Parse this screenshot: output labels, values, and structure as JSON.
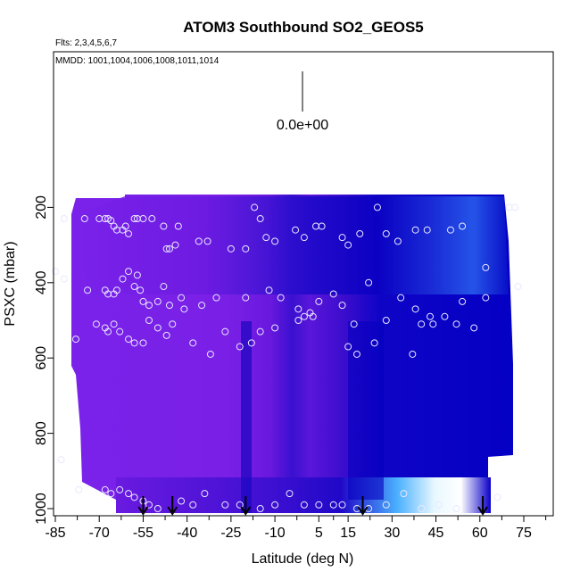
{
  "chart_data": {
    "type": "heatmap",
    "title": "ATOM3 Southbound SO2_GEOS5",
    "subtitle_flights": "Flts: 2,3,4,5,6,7",
    "subtitle_dates": "MMDD: 1001,1004,1006,1008,1011,1014",
    "xlabel": "Latitude (deg N)",
    "ylabel": "PSXC (mbar)",
    "scale_label": "0.0e+00",
    "xlim": [
      -85,
      85
    ],
    "ylim": [
      1000,
      0
    ],
    "x_ticks": [
      "-85",
      "-70",
      "-55",
      "-40",
      "-25",
      "-10",
      "5",
      "15",
      "30",
      "45",
      "60",
      "75"
    ],
    "y_ticks": [
      "200",
      "400",
      "600",
      "800",
      "1000"
    ],
    "colors": {
      "low": "#7a1ee8",
      "mid": "#4a14d6",
      "deep": "#0a00c8",
      "bright": "#2a6cf0",
      "highlight": "#4fb0ff"
    },
    "profile_markers_lat": [
      -55,
      -45,
      -20,
      20,
      61
    ],
    "sample_points": [
      [
        -82,
        230
      ],
      [
        -75,
        230
      ],
      [
        -70,
        230
      ],
      [
        -68,
        230
      ],
      [
        -67,
        230
      ],
      [
        -66,
        235
      ],
      [
        -65,
        250
      ],
      [
        -64,
        260
      ],
      [
        -62,
        260
      ],
      [
        -61,
        250
      ],
      [
        -60,
        270
      ],
      [
        -58,
        230
      ],
      [
        -57,
        230
      ],
      [
        -55,
        230
      ],
      [
        -52,
        230
      ],
      [
        -48,
        250
      ],
      [
        -47,
        310
      ],
      [
        -46,
        310
      ],
      [
        -44,
        300
      ],
      [
        -43,
        250
      ],
      [
        -36,
        290
      ],
      [
        -33,
        290
      ],
      [
        -25,
        310
      ],
      [
        -20,
        310
      ],
      [
        -17,
        200
      ],
      [
        -15,
        230
      ],
      [
        -13,
        280
      ],
      [
        -10,
        290
      ],
      [
        -3,
        260
      ],
      [
        0,
        280
      ],
      [
        4,
        250
      ],
      [
        6,
        250
      ],
      [
        13,
        280
      ],
      [
        15,
        300
      ],
      [
        19,
        270
      ],
      [
        25,
        200
      ],
      [
        28,
        270
      ],
      [
        32,
        290
      ],
      [
        38,
        260
      ],
      [
        42,
        260
      ],
      [
        50,
        260
      ],
      [
        54,
        250
      ],
      [
        62,
        360
      ],
      [
        70,
        200
      ],
      [
        72,
        200
      ],
      [
        -85,
        370
      ],
      [
        -82,
        390
      ],
      [
        -74,
        420
      ],
      [
        -68,
        420
      ],
      [
        -67,
        430
      ],
      [
        -65,
        430
      ],
      [
        -64,
        420
      ],
      [
        -62,
        390
      ],
      [
        -60,
        370
      ],
      [
        -58,
        410
      ],
      [
        -57,
        380
      ],
      [
        -56,
        420
      ],
      [
        -55,
        450
      ],
      [
        -53,
        460
      ],
      [
        -50,
        450
      ],
      [
        -48,
        410
      ],
      [
        -46,
        460
      ],
      [
        -42,
        440
      ],
      [
        -41,
        470
      ],
      [
        -35,
        460
      ],
      [
        -30,
        440
      ],
      [
        -20,
        440
      ],
      [
        -12,
        420
      ],
      [
        -8,
        440
      ],
      [
        -2,
        470
      ],
      [
        0,
        490
      ],
      [
        2,
        480
      ],
      [
        5,
        450
      ],
      [
        10,
        430
      ],
      [
        13,
        460
      ],
      [
        17,
        510
      ],
      [
        22,
        400
      ],
      [
        28,
        500
      ],
      [
        33,
        440
      ],
      [
        38,
        470
      ],
      [
        43,
        490
      ],
      [
        48,
        490
      ],
      [
        54,
        450
      ],
      [
        62,
        440
      ],
      [
        73,
        410
      ],
      [
        -78,
        550
      ],
      [
        -71,
        510
      ],
      [
        -68,
        520
      ],
      [
        -67,
        530
      ],
      [
        -65,
        510
      ],
      [
        -63,
        530
      ],
      [
        -60,
        550
      ],
      [
        -58,
        560
      ],
      [
        -55,
        560
      ],
      [
        -53,
        500
      ],
      [
        -50,
        520
      ],
      [
        -47,
        540
      ],
      [
        -45,
        510
      ],
      [
        -38,
        560
      ],
      [
        -32,
        590
      ],
      [
        -27,
        530
      ],
      [
        -22,
        570
      ],
      [
        -18,
        560
      ],
      [
        -15,
        530
      ],
      [
        -10,
        520
      ],
      [
        -2,
        500
      ],
      [
        3,
        490
      ],
      [
        15,
        570
      ],
      [
        18,
        590
      ],
      [
        24,
        560
      ],
      [
        37,
        590
      ],
      [
        40,
        510
      ],
      [
        44,
        510
      ],
      [
        52,
        510
      ],
      [
        58,
        520
      ],
      [
        -83,
        870
      ],
      [
        -77,
        950
      ],
      [
        -68,
        950
      ],
      [
        -66,
        960
      ],
      [
        -63,
        950
      ],
      [
        -60,
        960
      ],
      [
        -58,
        970
      ],
      [
        -55,
        980
      ],
      [
        -53,
        990
      ],
      [
        -50,
        1000
      ],
      [
        -42,
        980
      ],
      [
        -38,
        990
      ],
      [
        -34,
        960
      ],
      [
        -27,
        990
      ],
      [
        -22,
        990
      ],
      [
        -15,
        1000
      ],
      [
        -10,
        990
      ],
      [
        -5,
        960
      ],
      [
        0,
        990
      ],
      [
        5,
        990
      ],
      [
        10,
        990
      ],
      [
        13,
        990
      ],
      [
        18,
        1000
      ],
      [
        22,
        1000
      ],
      [
        28,
        990
      ],
      [
        34,
        960
      ],
      [
        40,
        1000
      ],
      [
        46,
        990
      ],
      [
        52,
        1000
      ],
      [
        66,
        970
      ]
    ]
  }
}
